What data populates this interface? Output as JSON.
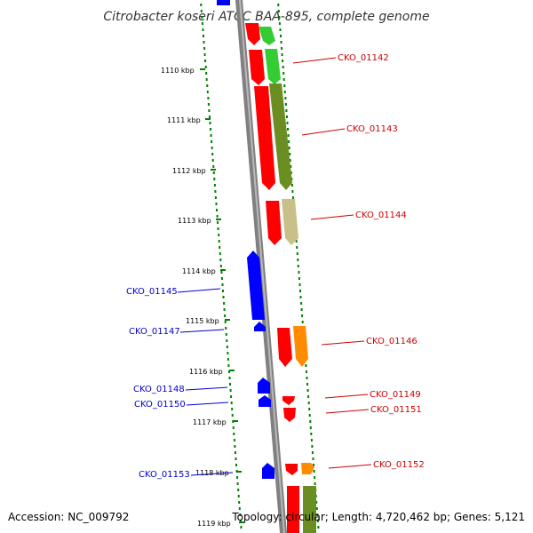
{
  "title": "Citrobacter koseri ATCC BAA-895, complete genome",
  "footer": {
    "accession": "Accession: NC_009792",
    "topology": "Topology: circular; Length: 4,720,462 bp; Genes: 5,121"
  },
  "colors": {
    "backbone": "#808080",
    "tick": "#008000",
    "forward_label": "#0000cc",
    "reverse_label": "#cc0000",
    "blue_gene": "#0000ff",
    "red_gene": "#ff0000",
    "green_gene": "#33cc33",
    "olive_gene": "#6b8e23",
    "khaki_gene": "#c8c088",
    "orange_gene": "#ff8c00"
  },
  "scale": {
    "unit": "kbp",
    "labels": [
      "1110 kbp",
      "1111 kbp",
      "1112 kbp",
      "1113 kbp",
      "1114 kbp",
      "1115 kbp",
      "1116 kbp",
      "1117 kbp",
      "1118 kbp",
      "1119 kbp"
    ]
  },
  "gene_labels": {
    "left": [
      "CKO_01145",
      "CKO_01147",
      "CKO_01148",
      "CKO_01150",
      "CKO_01153"
    ],
    "right": [
      "CKO_01142",
      "CKO_01143",
      "CKO_01144",
      "CKO_01146",
      "CKO_01149",
      "CKO_01151",
      "CKO_01152"
    ]
  }
}
